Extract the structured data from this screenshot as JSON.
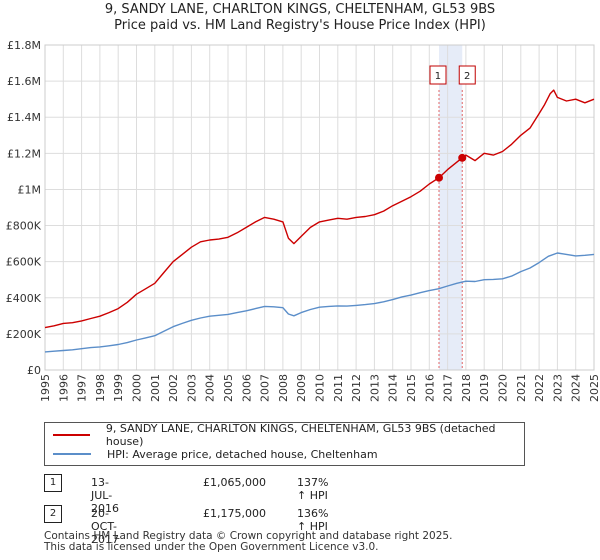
{
  "chart_data": {
    "type": "line",
    "title": "9, SANDY LANE, CHARLTON KINGS, CHELTENHAM, GL53 9BS",
    "subtitle": "Price paid vs. HM Land Registry's House Price Index (HPI)",
    "xlabel": "",
    "ylabel": "",
    "xlim": [
      1995,
      2025
    ],
    "ylim": [
      0,
      1800000
    ],
    "x_ticks": [
      "1995",
      "1996",
      "1997",
      "1998",
      "1999",
      "2000",
      "2001",
      "2002",
      "2003",
      "2004",
      "2005",
      "2006",
      "2007",
      "2008",
      "2009",
      "2010",
      "2011",
      "2012",
      "2013",
      "2014",
      "2015",
      "2016",
      "2017",
      "2018",
      "2019",
      "2020",
      "2021",
      "2022",
      "2023",
      "2024",
      "2025"
    ],
    "y_ticks": [
      {
        "value": 0,
        "label": "£0"
      },
      {
        "value": 200000,
        "label": "£200K"
      },
      {
        "value": 400000,
        "label": "£400K"
      },
      {
        "value": 600000,
        "label": "£600K"
      },
      {
        "value": 800000,
        "label": "£800K"
      },
      {
        "value": 1000000,
        "label": "£1M"
      },
      {
        "value": 1200000,
        "label": "£1.2M"
      },
      {
        "value": 1400000,
        "label": "£1.4M"
      },
      {
        "value": 1600000,
        "label": "£1.6M"
      },
      {
        "value": 1800000,
        "label": "£1.8M"
      }
    ],
    "grid": true,
    "series": [
      {
        "name": "9, SANDY LANE, CHARLTON KINGS, CHELTENHAM, GL53 9BS (detached house)",
        "color": "#cc0000",
        "x": [
          1995,
          1995.5,
          1996,
          1996.5,
          1997,
          1997.5,
          1998,
          1998.5,
          1999,
          1999.5,
          2000,
          2000.5,
          2001,
          2001.5,
          2002,
          2002.5,
          2003,
          2003.5,
          2004,
          2004.5,
          2005,
          2005.5,
          2006,
          2006.5,
          2007,
          2007.5,
          2008,
          2008.3,
          2008.6,
          2009,
          2009.5,
          2010,
          2010.5,
          2011,
          2011.5,
          2012,
          2012.5,
          2013,
          2013.5,
          2014,
          2014.5,
          2015,
          2015.5,
          2016,
          2016.53,
          2017,
          2017.8,
          2018,
          2018.5,
          2019,
          2019.5,
          2020,
          2020.5,
          2021,
          2021.5,
          2022,
          2022.3,
          2022.6,
          2022.8,
          2023,
          2023.5,
          2024,
          2024.5,
          2025
        ],
        "values": [
          235000,
          245000,
          258000,
          262000,
          272000,
          285000,
          298000,
          318000,
          340000,
          375000,
          420000,
          450000,
          480000,
          540000,
          600000,
          640000,
          680000,
          710000,
          720000,
          725000,
          735000,
          760000,
          790000,
          820000,
          845000,
          835000,
          820000,
          730000,
          700000,
          740000,
          790000,
          820000,
          830000,
          840000,
          835000,
          845000,
          850000,
          860000,
          880000,
          910000,
          935000,
          960000,
          990000,
          1030000,
          1065000,
          1110000,
          1175000,
          1190000,
          1160000,
          1200000,
          1190000,
          1210000,
          1250000,
          1300000,
          1340000,
          1420000,
          1470000,
          1530000,
          1550000,
          1510000,
          1490000,
          1500000,
          1480000,
          1500000
        ]
      },
      {
        "name": "HPI: Average price, detached house, Cheltenham",
        "color": "#5b8ec9",
        "x": [
          1995,
          1995.5,
          1996,
          1996.5,
          1997,
          1997.5,
          1998,
          1998.5,
          1999,
          1999.5,
          2000,
          2000.5,
          2001,
          2001.5,
          2002,
          2002.5,
          2003,
          2003.5,
          2004,
          2004.5,
          2005,
          2005.5,
          2006,
          2006.5,
          2007,
          2007.5,
          2008,
          2008.3,
          2008.6,
          2009,
          2009.5,
          2010,
          2010.5,
          2011,
          2011.5,
          2012,
          2012.5,
          2013,
          2013.5,
          2014,
          2014.5,
          2015,
          2015.5,
          2016,
          2016.5,
          2017,
          2017.5,
          2018,
          2018.5,
          2019,
          2019.5,
          2020,
          2020.5,
          2021,
          2021.5,
          2022,
          2022.5,
          2023,
          2023.5,
          2024,
          2024.5,
          2025
        ],
        "values": [
          100000,
          104000,
          108000,
          112000,
          118000,
          124000,
          128000,
          134000,
          141000,
          152000,
          166000,
          178000,
          190000,
          215000,
          240000,
          258000,
          275000,
          288000,
          298000,
          303000,
          308000,
          318000,
          328000,
          340000,
          352000,
          350000,
          345000,
          310000,
          300000,
          318000,
          335000,
          348000,
          352000,
          355000,
          354000,
          358000,
          362000,
          368000,
          378000,
          390000,
          405000,
          415000,
          428000,
          440000,
          450000,
          465000,
          480000,
          492000,
          490000,
          500000,
          502000,
          505000,
          520000,
          545000,
          565000,
          595000,
          630000,
          648000,
          640000,
          632000,
          635000,
          640000
        ]
      }
    ],
    "sales": [
      {
        "id": "1",
        "x": 2016.53,
        "value": 1065000
      },
      {
        "id": "2",
        "x": 2017.8,
        "value": 1175000
      }
    ],
    "shaded_span": [
      2016.53,
      2017.8
    ]
  },
  "legend": {
    "property_label": "9, SANDY LANE, CHARLTON KINGS, CHELTENHAM, GL53 9BS (detached house)",
    "hpi_label": "HPI: Average price, detached house, Cheltenham"
  },
  "transactions": [
    {
      "id": "1",
      "date": "13-JUL-2016",
      "price": "£1,065,000",
      "hpi": "137% ↑ HPI"
    },
    {
      "id": "2",
      "date": "20-OCT-2017",
      "price": "£1,175,000",
      "hpi": "136% ↑ HPI"
    }
  ],
  "footer": {
    "line1": "Contains HM Land Registry data © Crown copyright and database right 2025.",
    "line2": "This data is licensed under the Open Government Licence v3.0."
  },
  "colors": {
    "property": "#cc0000",
    "hpi": "#5b8ec9",
    "grid": "#dddddd",
    "shade": "#e6ecf8"
  }
}
